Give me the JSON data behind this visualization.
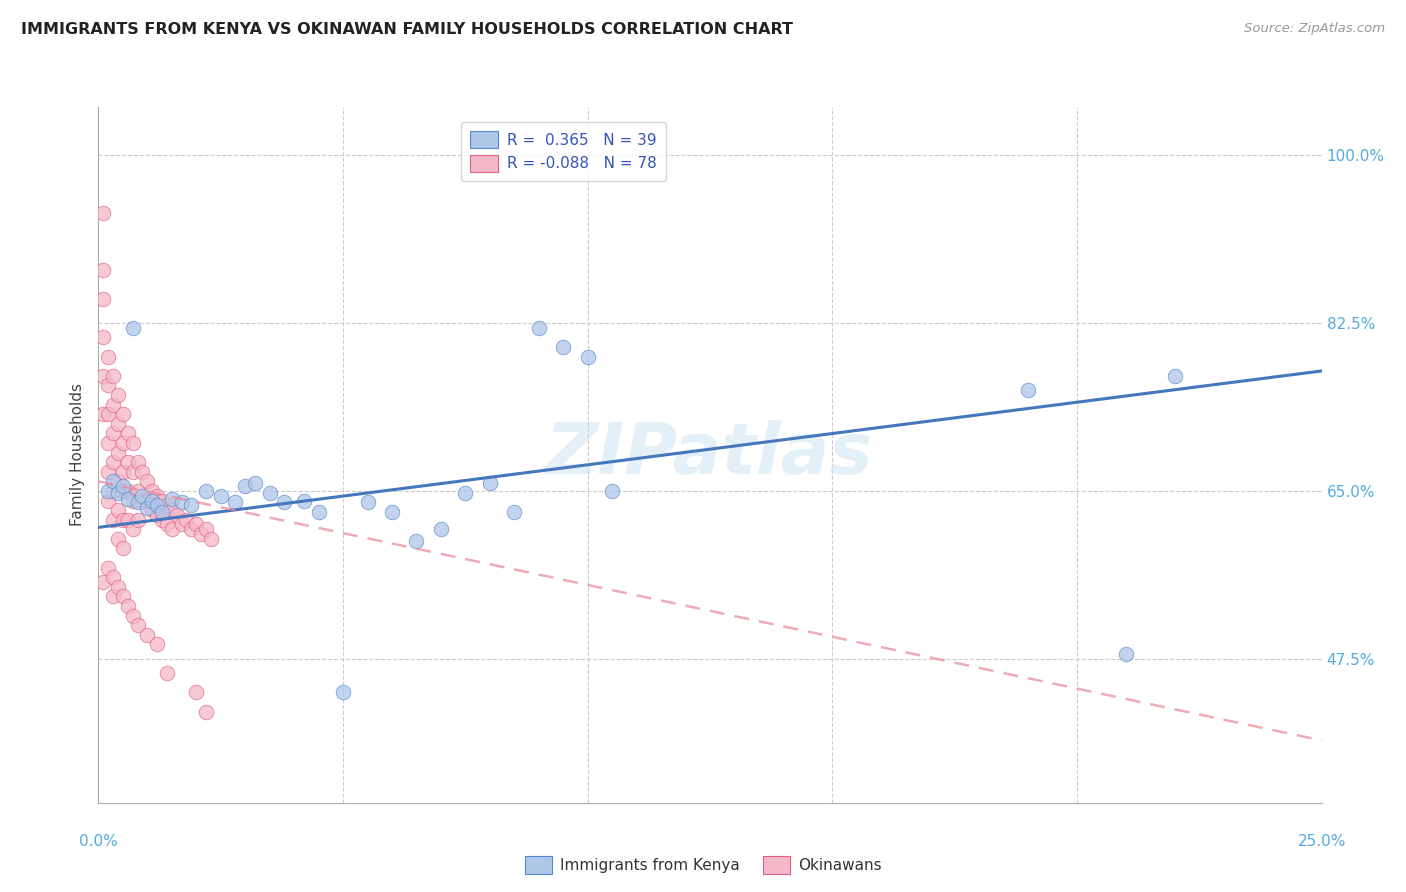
{
  "title": "IMMIGRANTS FROM KENYA VS OKINAWAN FAMILY HOUSEHOLDS CORRELATION CHART",
  "source": "Source: ZipAtlas.com",
  "ylabel": "Family Households",
  "ytick_labels": [
    "100.0%",
    "82.5%",
    "65.0%",
    "47.5%"
  ],
  "ytick_values": [
    1.0,
    0.825,
    0.65,
    0.475
  ],
  "xlim": [
    0.0,
    0.25
  ],
  "ylim": [
    0.325,
    1.05
  ],
  "watermark": "ZIPatlas",
  "blue_scatter_color": "#aec6e8",
  "blue_edge_color": "#5588cc",
  "pink_scatter_color": "#f5b8c8",
  "pink_edge_color": "#e06080",
  "blue_line_color": "#4477bb",
  "pink_line_color": "#e88899",
  "grid_color": "#cccccc",
  "right_label_color": "#55aadd",
  "kenya_x": [
    0.002,
    0.003,
    0.004,
    0.005,
    0.006,
    0.007,
    0.008,
    0.009,
    0.01,
    0.011,
    0.012,
    0.013,
    0.015,
    0.017,
    0.019,
    0.022,
    0.025,
    0.028,
    0.03,
    0.032,
    0.035,
    0.038,
    0.042,
    0.045,
    0.05,
    0.055,
    0.06,
    0.065,
    0.07,
    0.075,
    0.08,
    0.085,
    0.09,
    0.095,
    0.1,
    0.105,
    0.19,
    0.21,
    0.22
  ],
  "kenya_y": [
    0.65,
    0.66,
    0.648,
    0.655,
    0.642,
    0.82,
    0.638,
    0.645,
    0.632,
    0.64,
    0.635,
    0.628,
    0.642,
    0.638,
    0.635,
    0.65,
    0.645,
    0.638,
    0.655,
    0.658,
    0.648,
    0.638,
    0.64,
    0.628,
    0.44,
    0.638,
    0.628,
    0.598,
    0.61,
    0.648,
    0.658,
    0.628,
    0.82,
    0.8,
    0.79,
    0.65,
    0.755,
    0.48,
    0.77
  ],
  "okinawa_x": [
    0.001,
    0.001,
    0.001,
    0.001,
    0.001,
    0.001,
    0.002,
    0.002,
    0.002,
    0.002,
    0.002,
    0.002,
    0.003,
    0.003,
    0.003,
    0.003,
    0.003,
    0.003,
    0.004,
    0.004,
    0.004,
    0.004,
    0.004,
    0.004,
    0.005,
    0.005,
    0.005,
    0.005,
    0.005,
    0.005,
    0.006,
    0.006,
    0.006,
    0.006,
    0.007,
    0.007,
    0.007,
    0.007,
    0.008,
    0.008,
    0.008,
    0.009,
    0.009,
    0.01,
    0.01,
    0.011,
    0.011,
    0.012,
    0.012,
    0.013,
    0.013,
    0.014,
    0.014,
    0.015,
    0.015,
    0.016,
    0.017,
    0.018,
    0.019,
    0.02,
    0.021,
    0.022,
    0.023,
    0.001,
    0.002,
    0.003,
    0.003,
    0.004,
    0.005,
    0.006,
    0.007,
    0.008,
    0.01,
    0.012,
    0.014,
    0.02,
    0.022
  ],
  "okinawa_y": [
    0.94,
    0.88,
    0.85,
    0.81,
    0.77,
    0.73,
    0.79,
    0.76,
    0.73,
    0.7,
    0.67,
    0.64,
    0.77,
    0.74,
    0.71,
    0.68,
    0.65,
    0.62,
    0.75,
    0.72,
    0.69,
    0.66,
    0.63,
    0.6,
    0.73,
    0.7,
    0.67,
    0.65,
    0.62,
    0.59,
    0.71,
    0.68,
    0.65,
    0.62,
    0.7,
    0.67,
    0.64,
    0.61,
    0.68,
    0.65,
    0.62,
    0.67,
    0.64,
    0.66,
    0.64,
    0.65,
    0.63,
    0.645,
    0.625,
    0.64,
    0.62,
    0.635,
    0.615,
    0.63,
    0.61,
    0.625,
    0.615,
    0.62,
    0.61,
    0.615,
    0.605,
    0.61,
    0.6,
    0.555,
    0.57,
    0.56,
    0.54,
    0.55,
    0.54,
    0.53,
    0.52,
    0.51,
    0.5,
    0.49,
    0.46,
    0.44,
    0.42
  ],
  "kenya_line_x0": 0.0,
  "kenya_line_x1": 0.25,
  "kenya_line_y0": 0.612,
  "kenya_line_y1": 0.775,
  "okinawa_line_x0": 0.0,
  "okinawa_line_x1": 0.25,
  "okinawa_line_y0": 0.66,
  "okinawa_line_y1": 0.39
}
